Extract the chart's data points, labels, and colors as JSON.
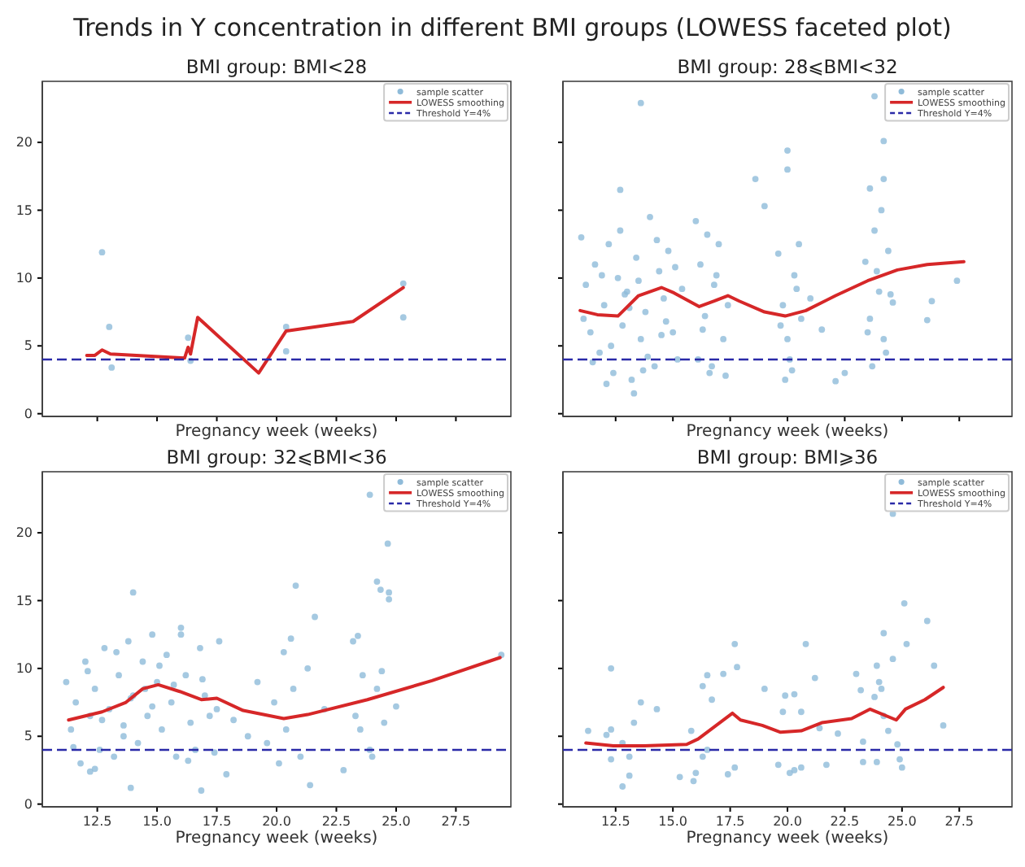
{
  "chart_data": [
    {
      "type": "scatter",
      "title": "BMI group: BMI<28",
      "xlabel": "Pregnancy week (weeks)",
      "annotations": [
        "Trends in Y concentration in different BMI groups (LOWESS faceted plot)"
      ],
      "xlim": [
        10.2,
        29.8
      ],
      "ylim": [
        -0.2,
        24.5
      ],
      "xticks": [
        {
          "value": 12.5,
          "label": null
        },
        {
          "value": 15,
          "label": null
        },
        {
          "value": 17.5,
          "label": null
        },
        {
          "value": 20,
          "label": null
        },
        {
          "value": 22.5,
          "label": null
        },
        {
          "value": 25,
          "label": null
        },
        {
          "value": 27.5,
          "label": null
        }
      ],
      "yticks": [
        0,
        5,
        10,
        15,
        20
      ],
      "tick_labels": "y",
      "legend": "top right",
      "grid": false,
      "ref_lines": [
        {
          "axis": "y",
          "value": 4,
          "label": "Threshold Y=4%",
          "color": "#2a2aa8",
          "line_style": "dashed"
        }
      ],
      "series": [
        {
          "name": "sample scatter",
          "type": "scatter",
          "marker": "circle",
          "color": "#8fbbd9",
          "x": [
            12.7,
            13.0,
            13.1,
            16.3,
            16.4,
            20.4,
            20.4,
            25.3,
            25.3
          ],
          "values": [
            11.9,
            6.4,
            3.4,
            5.6,
            3.9,
            6.4,
            4.6,
            9.6,
            7.1
          ]
        },
        {
          "name": "LOWESS smoothing",
          "type": "line",
          "marker": "none",
          "line_style": "solid",
          "color": "#d62728",
          "x": [
            12.06,
            12.4,
            12.7,
            13.05,
            16.15,
            16.3,
            16.4,
            16.7,
            19.25,
            20.4,
            23.2,
            25.3
          ],
          "values": [
            4.3,
            4.3,
            4.7,
            4.4,
            4.1,
            4.9,
            4.4,
            7.1,
            3.0,
            6.1,
            6.8,
            9.3
          ]
        }
      ]
    },
    {
      "type": "scatter",
      "title": "BMI group: 28⩽BMI<32",
      "xlabel": "Pregnancy week (weeks)",
      "xlim": [
        10.2,
        29.8
      ],
      "ylim": [
        -0.2,
        24.5
      ],
      "xticks": [
        {
          "value": 12.5,
          "label": null
        },
        {
          "value": 15,
          "label": null
        },
        {
          "value": 17.5,
          "label": null
        },
        {
          "value": 20,
          "label": null
        },
        {
          "value": 22.5,
          "label": null
        },
        {
          "value": 25,
          "label": null
        },
        {
          "value": 27.5,
          "label": null
        }
      ],
      "yticks": [
        {
          "value": 0,
          "label": null
        },
        {
          "value": 5,
          "label": null
        },
        {
          "value": 10,
          "label": null
        },
        {
          "value": 15,
          "label": null
        },
        {
          "value": 20,
          "label": null
        }
      ],
      "tick_labels": false,
      "legend": "top right",
      "grid": false,
      "ref_lines": [
        {
          "axis": "y",
          "value": 4,
          "label": "Threshold Y=4%",
          "color": "#2a2aa8",
          "line_style": "dashed"
        }
      ],
      "series": [
        {
          "name": "sample scatter",
          "type": "scatter",
          "marker": "circle",
          "color": "#8fbbd9",
          "x": [
            13.6,
            23.8,
            24.2,
            20.0,
            20.0,
            12.7,
            18.6,
            19.0,
            24.2,
            23.6,
            27.4,
            26.3,
            26.1,
            22.1,
            13.3,
            11.0,
            11.2,
            11.4,
            11.6,
            11.8,
            12.0,
            12.2,
            12.4,
            12.6,
            12.8,
            13.0,
            13.2,
            13.4,
            13.6,
            13.8,
            14.0,
            14.2,
            14.4,
            14.6,
            14.8,
            15.0,
            15.2,
            11.1,
            11.5,
            11.9,
            12.3,
            12.7,
            13.1,
            13.5,
            13.9,
            14.3,
            14.7,
            15.1,
            15.4,
            12.1,
            12.9,
            13.7,
            14.5,
            16.0,
            16.2,
            16.4,
            16.6,
            16.8,
            17.0,
            17.2,
            17.4,
            16.1,
            16.5,
            16.9,
            17.3,
            16.3,
            16.7,
            19.6,
            19.8,
            20.0,
            20.2,
            20.4,
            20.6,
            19.7,
            20.1,
            20.5,
            19.9,
            20.3,
            21.0,
            21.5,
            22.5,
            23.4,
            23.6,
            23.8,
            24.0,
            24.2,
            24.4,
            24.6,
            23.5,
            23.9,
            24.3,
            24.5,
            23.7,
            24.1
          ],
          "values": [
            22.9,
            23.4,
            20.1,
            19.4,
            18.0,
            16.5,
            17.3,
            15.3,
            17.3,
            16.6,
            9.8,
            8.3,
            6.9,
            2.4,
            1.5,
            13.0,
            9.5,
            6.0,
            11.0,
            4.5,
            8.0,
            12.5,
            3.0,
            10.0,
            6.5,
            9.0,
            2.5,
            11.5,
            5.5,
            7.5,
            14.5,
            3.5,
            10.5,
            8.5,
            12.0,
            6.0,
            4.0,
            7.0,
            3.8,
            10.2,
            5.0,
            13.5,
            7.8,
            9.8,
            4.2,
            12.8,
            6.8,
            10.8,
            9.2,
            2.2,
            8.8,
            3.2,
            5.8,
            14.2,
            11.0,
            7.2,
            3.0,
            9.5,
            12.5,
            5.5,
            8.0,
            4.0,
            13.2,
            10.2,
            2.8,
            6.2,
            3.5,
            11.8,
            8.0,
            5.5,
            3.2,
            9.2,
            7.0,
            6.5,
            4.0,
            12.5,
            2.5,
            10.2,
            8.5,
            6.2,
            3.0,
            11.2,
            7.0,
            13.5,
            9.0,
            5.5,
            12.0,
            8.2,
            6.0,
            10.5,
            4.5,
            8.8,
            3.5,
            15.0
          ]
        },
        {
          "name": "LOWESS smoothing",
          "type": "line",
          "marker": "none",
          "line_style": "solid",
          "color": "#d62728",
          "x": [
            10.95,
            11.7,
            12.6,
            13.5,
            14.5,
            15.05,
            16.15,
            16.8,
            17.4,
            17.9,
            19.0,
            19.9,
            20.8,
            22.1,
            23.5,
            24.8,
            26.1,
            27.7
          ],
          "values": [
            7.6,
            7.3,
            7.2,
            8.7,
            9.3,
            8.9,
            7.9,
            8.3,
            8.7,
            8.3,
            7.5,
            7.2,
            7.6,
            8.7,
            9.8,
            10.6,
            11.0,
            11.2
          ]
        }
      ]
    },
    {
      "type": "scatter",
      "title": "BMI group: 32⩽BMI<36",
      "xlabel": "Pregnancy week (weeks)",
      "xlim": [
        10.2,
        29.8
      ],
      "ylim": [
        -0.2,
        24.5
      ],
      "xticks": [
        12.5,
        {
          "value": 15,
          "label": "15.0"
        },
        17.5,
        {
          "value": 20,
          "label": "20.0"
        },
        22.5,
        {
          "value": 25,
          "label": "25.0"
        },
        27.5
      ],
      "yticks": [
        0,
        5,
        10,
        15,
        20
      ],
      "legend": "top right",
      "grid": false,
      "ref_lines": [
        {
          "axis": "y",
          "value": 4,
          "label": "Threshold Y=4%",
          "color": "#2a2aa8",
          "line_style": "dashed"
        }
      ],
      "series": [
        {
          "name": "sample scatter",
          "type": "scatter",
          "marker": "circle",
          "color": "#8fbbd9",
          "x": [
            23.9,
            24.65,
            24.2,
            24.35,
            24.7,
            24.7,
            20.8,
            14.0,
            21.6,
            23.2,
            23.4,
            21.3,
            20.3,
            20.6,
            29.4,
            21.4,
            16.85,
            13.9,
            17.9,
            12.2,
            11.2,
            11.4,
            11.6,
            11.8,
            12.0,
            12.2,
            12.4,
            12.6,
            12.8,
            13.0,
            13.2,
            13.4,
            13.6,
            13.8,
            14.0,
            14.2,
            14.4,
            14.6,
            14.8,
            15.0,
            15.2,
            15.4,
            15.6,
            15.8,
            16.0,
            16.2,
            16.4,
            16.6,
            16.8,
            17.0,
            17.2,
            17.4,
            17.6,
            11.5,
            12.1,
            12.7,
            13.3,
            13.9,
            14.5,
            15.1,
            15.7,
            16.3,
            16.9,
            17.5,
            12.4,
            13.6,
            14.8,
            16.0,
            18.2,
            18.8,
            19.2,
            19.6,
            19.9,
            20.1,
            20.4,
            20.7,
            21.0,
            22.0,
            23.3,
            23.6,
            23.9,
            24.2,
            24.5,
            23.5,
            24.0,
            24.4,
            22.8,
            25.0
          ],
          "values": [
            22.8,
            19.2,
            16.4,
            15.8,
            15.6,
            15.1,
            16.1,
            15.6,
            13.8,
            12.0,
            12.4,
            10.0,
            11.2,
            12.2,
            11.0,
            1.4,
            1.0,
            1.2,
            2.2,
            2.4,
            9.0,
            5.5,
            7.5,
            3.0,
            10.5,
            6.5,
            8.5,
            4.0,
            11.5,
            7.0,
            3.5,
            9.5,
            5.0,
            12.0,
            8.0,
            4.5,
            10.5,
            6.5,
            12.5,
            9.0,
            5.5,
            11.0,
            7.5,
            3.5,
            13.0,
            9.5,
            6.0,
            4.0,
            11.5,
            8.0,
            6.5,
            3.8,
            12.0,
            4.2,
            9.8,
            6.2,
            11.2,
            7.8,
            8.5,
            10.2,
            8.8,
            3.2,
            9.2,
            7.0,
            2.6,
            5.8,
            7.2,
            12.5,
            6.2,
            5.0,
            9.0,
            4.5,
            7.5,
            3.0,
            5.5,
            8.5,
            3.5,
            7.0,
            6.5,
            9.5,
            4.0,
            8.5,
            6.0,
            5.5,
            3.5,
            9.8,
            2.5,
            7.2
          ]
        },
        {
          "name": "LOWESS smoothing",
          "type": "line",
          "marker": "none",
          "line_style": "solid",
          "color": "#d62728",
          "x": [
            11.3,
            12.7,
            13.7,
            14.4,
            15.05,
            15.95,
            16.85,
            17.5,
            18.6,
            20.3,
            21.3,
            23.8,
            26.5,
            29.35
          ],
          "values": [
            6.2,
            6.8,
            7.5,
            8.5,
            8.8,
            8.3,
            7.7,
            7.8,
            6.9,
            6.3,
            6.6,
            7.7,
            9.1,
            10.8
          ]
        }
      ]
    },
    {
      "type": "scatter",
      "title": "BMI group: BMI⩾36",
      "xlabel": "Pregnancy week (weeks)",
      "xlim": [
        10.2,
        29.8
      ],
      "ylim": [
        -0.2,
        24.5
      ],
      "xticks": [
        12.5,
        {
          "value": 15,
          "label": "15.0"
        },
        17.5,
        {
          "value": 20,
          "label": "20.0"
        },
        22.5,
        {
          "value": 25,
          "label": "25.0"
        },
        27.5
      ],
      "yticks": [
        {
          "value": 0,
          "label": null
        },
        {
          "value": 5,
          "label": null
        },
        {
          "value": 10,
          "label": null
        },
        {
          "value": 15,
          "label": null
        },
        {
          "value": 20,
          "label": null
        }
      ],
      "tick_labels": "x",
      "legend": "top right",
      "grid": false,
      "ref_lines": [
        {
          "axis": "y",
          "value": 4,
          "label": "Threshold Y=4%",
          "color": "#2a2aa8",
          "line_style": "dashed"
        }
      ],
      "series": [
        {
          "name": "sample scatter",
          "type": "scatter",
          "marker": "circle",
          "color": "#8fbbd9",
          "x": [
            24.6,
            25.1,
            26.1,
            25.2,
            24.2,
            24.6,
            26.4,
            17.7,
            20.8,
            17.8,
            12.3,
            17.2,
            16.5,
            16.3,
            16.7,
            13.6,
            14.3,
            13.3,
            11.3,
            12.1,
            12.3,
            12.8,
            13.1,
            13.1,
            12.8,
            12.3,
            15.8,
            16.5,
            16.3,
            16.0,
            15.3,
            15.9,
            17.7,
            17.4,
            19.0,
            19.9,
            20.3,
            20.6,
            19.8,
            19.6,
            20.3,
            20.1,
            20.6,
            21.2,
            21.4,
            22.2,
            23.0,
            23.2,
            23.8,
            24.0,
            24.1,
            23.9,
            23.3,
            23.3,
            23.9,
            24.2,
            24.4,
            24.8,
            25.0,
            24.9,
            26.8,
            21.7
          ],
          "values": [
            21.4,
            14.8,
            13.5,
            11.8,
            12.6,
            10.7,
            10.2,
            11.8,
            11.8,
            10.1,
            10.0,
            9.6,
            9.5,
            8.7,
            7.7,
            7.5,
            7.0,
            6.0,
            5.4,
            5.1,
            5.5,
            4.5,
            3.5,
            2.1,
            1.3,
            3.3,
            5.4,
            4.0,
            3.5,
            2.3,
            2.0,
            1.7,
            2.7,
            2.2,
            8.5,
            8.0,
            8.1,
            6.8,
            6.8,
            2.9,
            2.5,
            2.3,
            2.7,
            9.3,
            5.6,
            5.2,
            9.6,
            8.4,
            7.9,
            9.0,
            8.5,
            10.2,
            4.6,
            3.1,
            3.1,
            6.5,
            5.4,
            4.4,
            2.7,
            3.3,
            5.8,
            2.9
          ]
        },
        {
          "name": "LOWESS smoothing",
          "type": "line",
          "marker": "none",
          "line_style": "solid",
          "color": "#d62728",
          "x": [
            11.2,
            12.4,
            13.75,
            15.6,
            16.1,
            17.6,
            17.95,
            18.9,
            19.7,
            20.6,
            21.5,
            22.8,
            23.6,
            24.75,
            25.15,
            26.0,
            26.8
          ],
          "values": [
            4.5,
            4.3,
            4.3,
            4.4,
            4.8,
            6.7,
            6.2,
            5.8,
            5.3,
            5.4,
            6.0,
            6.3,
            7.0,
            6.2,
            7.0,
            7.7,
            8.6
          ]
        }
      ]
    }
  ]
}
